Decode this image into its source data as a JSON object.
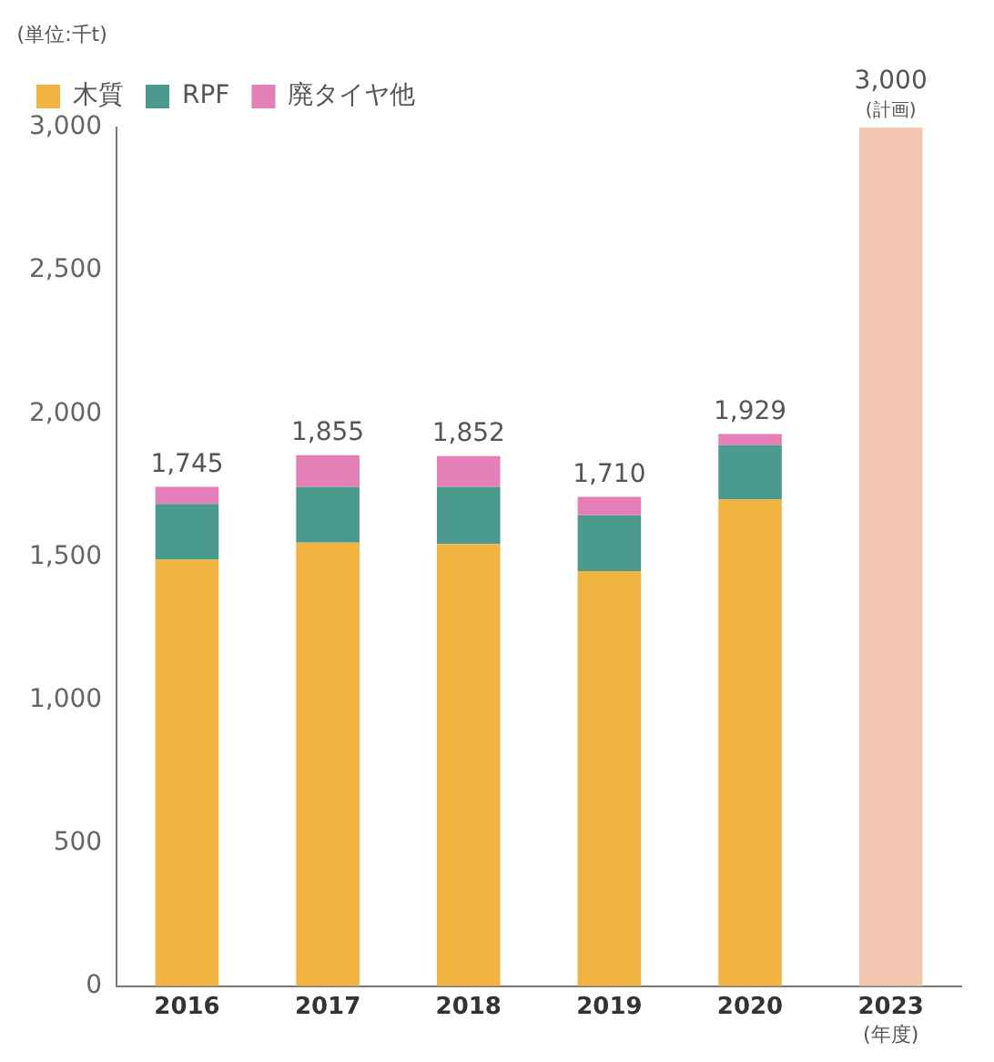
{
  "chart_data": {
    "type": "bar",
    "stacked": true,
    "ylabel": "(単位:千t)",
    "xlabel": "(年度)",
    "categories": [
      "2016",
      "2017",
      "2018",
      "2019",
      "2020",
      "2023"
    ],
    "series": [
      {
        "name": "木質",
        "color": "#f2b440",
        "values": [
          1490,
          1550,
          1545,
          1450,
          1700,
          null
        ]
      },
      {
        "name": "RPF",
        "color": "#4a9a8e",
        "values": [
          195,
          195,
          200,
          195,
          190,
          null
        ]
      },
      {
        "name": "廃タイヤ他",
        "color": "#e57fb8",
        "values": [
          60,
          110,
          107,
          65,
          39,
          null
        ]
      },
      {
        "color": "#f3c6b2",
        "values": [
          null,
          null,
          null,
          null,
          null,
          3000
        ]
      }
    ],
    "totals": [
      "1,745",
      "1,855",
      "1,852",
      "1,710",
      "1,929",
      "3,000"
    ],
    "annotations": [
      {
        "text": "(計画)",
        "x": "2023",
        "y": 3000
      }
    ],
    "ylim": [
      0,
      3000
    ],
    "yticks": [
      0,
      500,
      {
        "value": 1000,
        "label": "1,000"
      },
      {
        "value": 1500,
        "label": "1,500"
      },
      {
        "value": 2000,
        "label": "2,000"
      },
      {
        "value": 2500,
        "label": "2,500"
      },
      {
        "value": 3000,
        "label": "3,000"
      }
    ],
    "grid": false,
    "legend": "top left"
  }
}
